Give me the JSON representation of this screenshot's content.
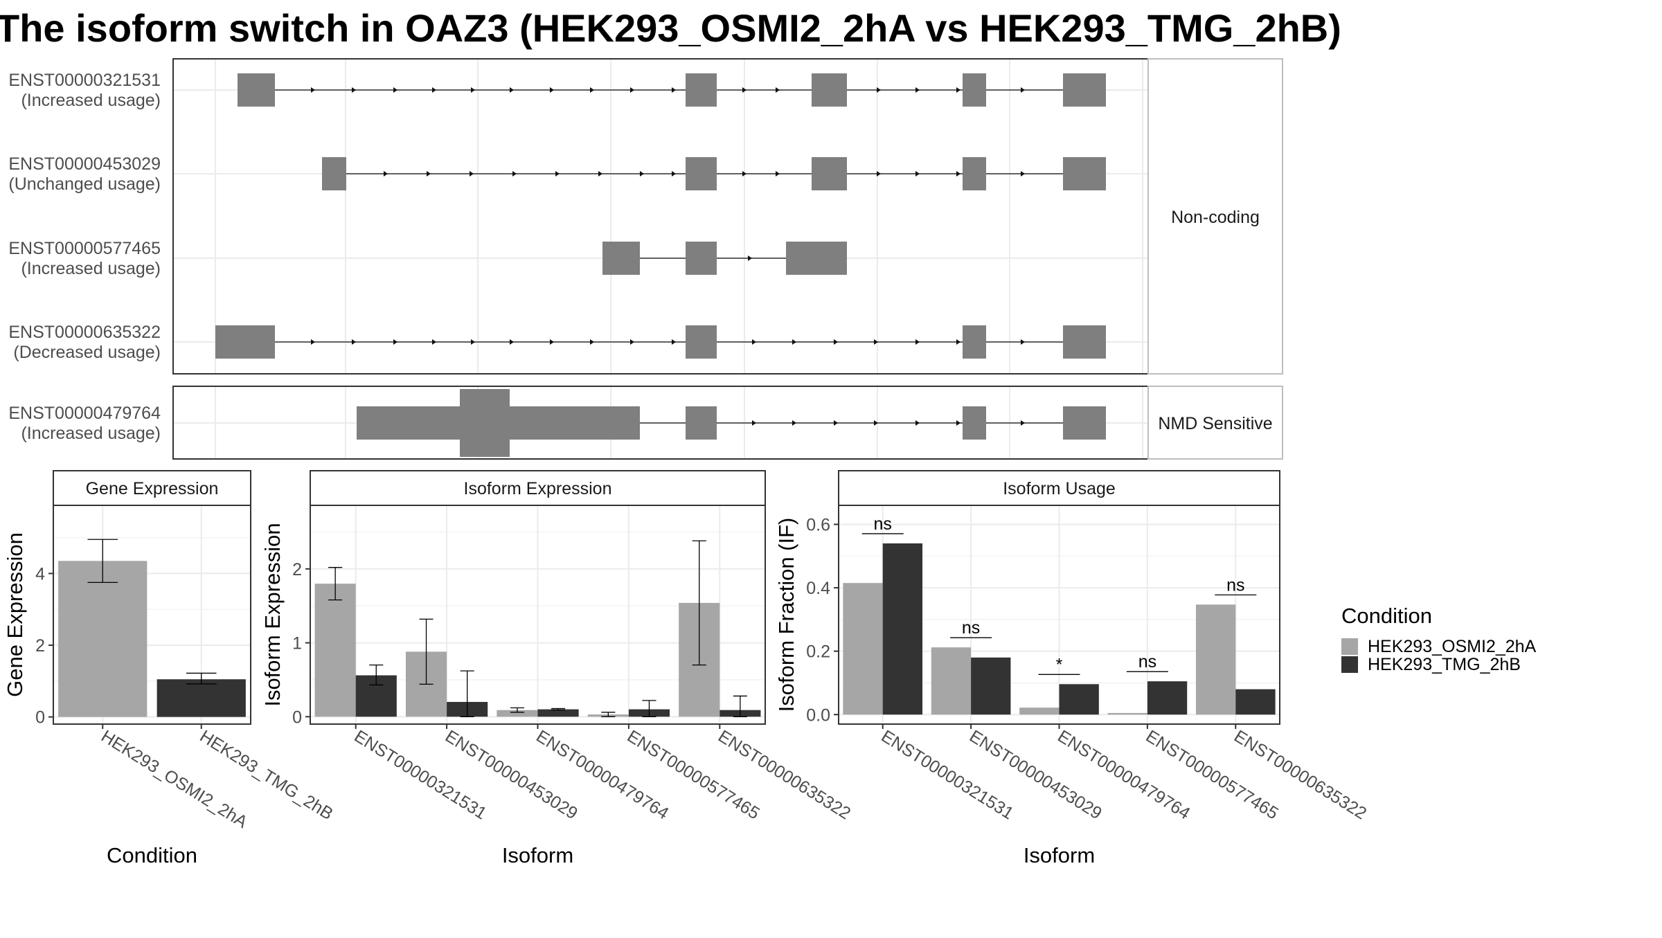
{
  "figure_title": "The isoform switch in OAZ3 (HEK293_OSMI2_2hA vs HEK293_TMG_2hB)",
  "colors": {
    "exon": "#7f7f7f",
    "cond_a": "#a6a6a6",
    "cond_b": "#333333",
    "grid": "#ebebeb",
    "strip_fill": "#ffffff",
    "frame": "#333333"
  },
  "legend": {
    "title": "Condition",
    "items": [
      {
        "label": "HEK293_OSMI2_2hA",
        "color_key": "cond_a"
      },
      {
        "label": "HEK293_TMG_2hB",
        "color_key": "cond_b"
      }
    ]
  },
  "chart_data": [
    {
      "type": "gene_structure",
      "panels": [
        {
          "strip": "Non-coding",
          "transcripts": [
            {
              "id": "ENST00000321531",
              "usage": "(Increased usage)"
            },
            {
              "id": "ENST00000453029",
              "usage": "(Unchanged usage)"
            },
            {
              "id": "ENST00000577465",
              "usage": "(Increased usage)"
            },
            {
              "id": "ENST00000635322",
              "usage": "(Decreased usage)"
            }
          ]
        },
        {
          "strip": "NMD Sensitive",
          "transcripts": [
            {
              "id": "ENST00000479764",
              "usage": "(Increased usage)"
            }
          ]
        }
      ]
    },
    {
      "type": "bar",
      "strip": "Gene Expression",
      "xlabel": "Condition",
      "ylabel": "Gene Expression",
      "categories": [
        "HEK293_OSMI2_2hA",
        "HEK293_TMG_2hB"
      ],
      "values": [
        4.35,
        1.05
      ],
      "errors": [
        [
          3.75,
          4.95
        ],
        [
          0.92,
          1.22
        ]
      ],
      "ylim": [
        -0.2,
        5.9
      ],
      "yticks": [
        0,
        2,
        4
      ]
    },
    {
      "type": "bar",
      "strip": "Isoform Expression",
      "xlabel": "Isoform",
      "ylabel": "Isoform Expression",
      "categories": [
        "ENST00000321531",
        "ENST00000453029",
        "ENST00000479764",
        "ENST00000577465",
        "ENST00000635322"
      ],
      "series": [
        {
          "name": "HEK293_OSMI2_2hA",
          "values": [
            1.8,
            0.88,
            0.09,
            0.03,
            1.54
          ],
          "errors": [
            [
              1.58,
              2.02
            ],
            [
              0.44,
              1.32
            ],
            [
              0.06,
              0.12
            ],
            [
              0.0,
              0.06
            ],
            [
              0.7,
              2.38
            ]
          ]
        },
        {
          "name": "HEK293_TMG_2hB",
          "values": [
            0.56,
            0.2,
            0.1,
            0.1,
            0.09
          ],
          "errors": [
            [
              0.43,
              0.7
            ],
            [
              0.0,
              0.62
            ],
            [
              0.09,
              0.11
            ],
            [
              0.0,
              0.22
            ],
            [
              0.0,
              0.28
            ]
          ]
        }
      ],
      "ylim": [
        -0.1,
        2.86
      ],
      "yticks": [
        0,
        1,
        2
      ]
    },
    {
      "type": "bar",
      "strip": "Isoform Usage",
      "xlabel": "Isoform",
      "ylabel": "Isoform Fraction (IF)",
      "categories": [
        "ENST00000321531",
        "ENST00000453029",
        "ENST00000479764",
        "ENST00000577465",
        "ENST00000635322"
      ],
      "series": [
        {
          "name": "HEK293_OSMI2_2hA",
          "values": [
            0.415,
            0.212,
            0.022,
            0.005,
            0.347
          ]
        },
        {
          "name": "HEK293_TMG_2hB",
          "values": [
            0.54,
            0.18,
            0.096,
            0.105,
            0.08
          ]
        }
      ],
      "significance": [
        "ns",
        "ns",
        "*",
        "ns",
        "ns"
      ],
      "ylim": [
        -0.03,
        0.66
      ],
      "yticks": [
        "0.0",
        "0.2",
        "0.4",
        "0.6"
      ]
    }
  ]
}
